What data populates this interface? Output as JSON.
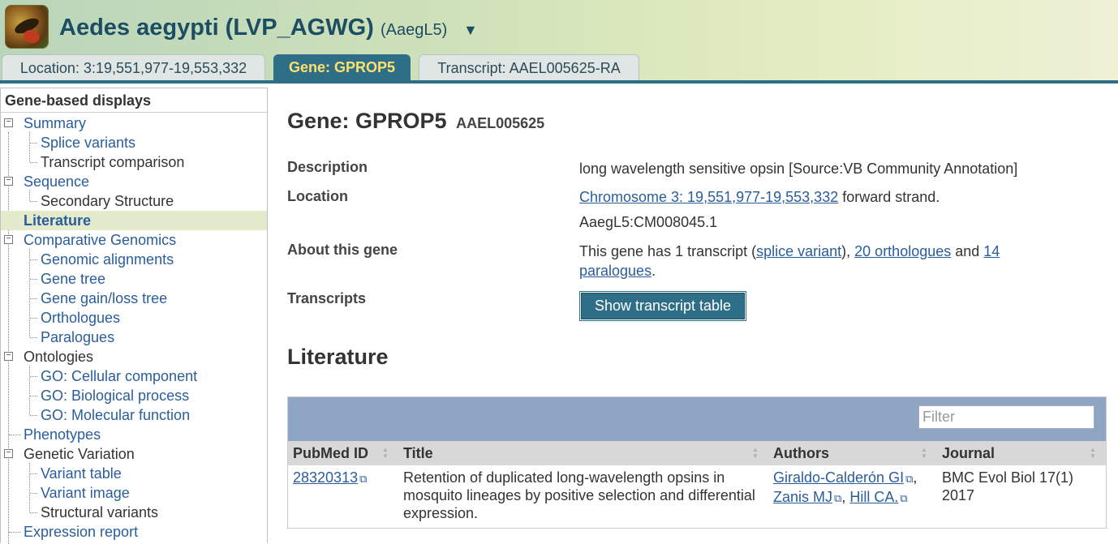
{
  "header": {
    "species": "Aedes aegypti (LVP_AGWG)",
    "assembly": "(AaegL5)",
    "dropdown_glyph": "▼",
    "tabs": [
      {
        "label": "Location: 3:19,551,977-19,553,332"
      },
      {
        "label": "Gene: GPROP5"
      },
      {
        "label": "Transcript: AAEL005625-RA"
      }
    ]
  },
  "sidebar": {
    "title": "Gene-based displays",
    "items": [
      {
        "label": "Summary"
      },
      {
        "label": "Splice variants"
      },
      {
        "label": "Transcript comparison"
      },
      {
        "label": "Sequence"
      },
      {
        "label": "Secondary Structure"
      },
      {
        "label": "Literature"
      },
      {
        "label": "Comparative Genomics"
      },
      {
        "label": "Genomic alignments"
      },
      {
        "label": "Gene tree"
      },
      {
        "label": "Gene gain/loss tree"
      },
      {
        "label": "Orthologues"
      },
      {
        "label": "Paralogues"
      },
      {
        "label": "Ontologies"
      },
      {
        "label": "GO: Cellular component"
      },
      {
        "label": "GO: Biological process"
      },
      {
        "label": "GO: Molecular function"
      },
      {
        "label": "Phenotypes"
      },
      {
        "label": "Genetic Variation"
      },
      {
        "label": "Variant table"
      },
      {
        "label": "Variant image"
      },
      {
        "label": "Structural variants"
      },
      {
        "label": "Expression report"
      }
    ]
  },
  "gene": {
    "heading": "Gene: GPROP5",
    "stable_id": "AAEL005625"
  },
  "summary": {
    "description_label": "Description",
    "description_value": "long wavelength sensitive opsin [Source:VB Community Annotation]",
    "location_label": "Location",
    "location_link": "Chromosome 3: 19,551,977-19,553,332",
    "location_strand": " forward strand.",
    "location_assembly": "AaegL5:CM008045.1",
    "about_label": "About this gene",
    "about_prefix": "This gene has 1 transcript (",
    "about_splice_link": "splice variant",
    "about_mid1": "), ",
    "about_orthologues_link": "20 orthologues",
    "about_mid2": " and ",
    "about_paralogues_count": "14",
    "about_paralogues_word": "paralogues",
    "about_end": ".",
    "transcripts_label": "Transcripts",
    "transcripts_button": "Show transcript table"
  },
  "literature": {
    "heading": "Literature",
    "filter_placeholder": "Filter",
    "columns": [
      "PubMed ID",
      "Title",
      "Authors",
      "Journal"
    ],
    "rows": [
      {
        "pubmed_id": "28320313",
        "title": "Retention of duplicated long-wavelength opsins in mosquito lineages by positive selection and differential expression.",
        "authors": [
          "Giraldo-Calderón GI",
          "Zanis MJ",
          "Hill CA."
        ],
        "journal": "BMC Evol Biol 17(1) 2017"
      }
    ]
  },
  "icons": {
    "external_link": "⧉",
    "sort": "▲▼",
    "toggle": "−"
  }
}
